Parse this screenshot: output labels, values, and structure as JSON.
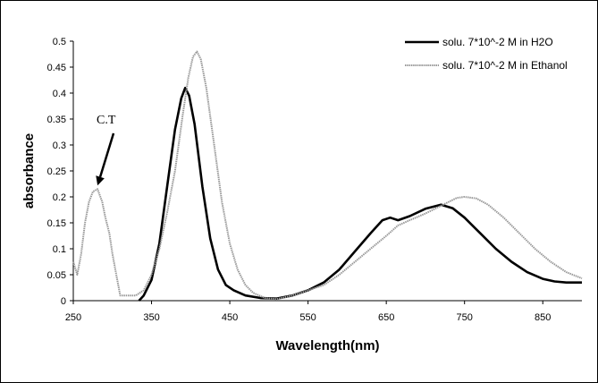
{
  "chart_data": {
    "type": "line",
    "title": "",
    "xlabel": "Wavelength(nm)",
    "ylabel": "absorbance",
    "xlim": [
      250,
      900
    ],
    "ylim": [
      0,
      0.5
    ],
    "x_ticks": [
      "250",
      "350",
      "450",
      "550",
      "650",
      "750",
      "850"
    ],
    "x_tick_values": [
      250,
      350,
      450,
      550,
      650,
      750,
      850
    ],
    "y_ticks": [
      "0",
      "0.05",
      "0.1",
      "0.15",
      "0.2",
      "0.25",
      "0.3",
      "0.35",
      "0.4",
      "0.45",
      "0.5"
    ],
    "y_tick_values": [
      0,
      0.05,
      0.1,
      0.15,
      0.2,
      0.25,
      0.3,
      0.35,
      0.4,
      0.45,
      0.5
    ],
    "grid": false,
    "legend": "top-right",
    "annotation": {
      "text": "C.T",
      "points_to": [
        281,
        0.215
      ]
    },
    "series": [
      {
        "name": "solu. 7*10^-2 M in H2O",
        "color": "#000000",
        "style": "solid-thick",
        "points": [
          [
            334,
            0
          ],
          [
            340,
            0.01
          ],
          [
            350,
            0.04
          ],
          [
            360,
            0.11
          ],
          [
            370,
            0.22
          ],
          [
            380,
            0.33
          ],
          [
            388,
            0.39
          ],
          [
            393,
            0.41
          ],
          [
            398,
            0.395
          ],
          [
            405,
            0.34
          ],
          [
            415,
            0.22
          ],
          [
            425,
            0.12
          ],
          [
            435,
            0.06
          ],
          [
            445,
            0.03
          ],
          [
            455,
            0.02
          ],
          [
            470,
            0.01
          ],
          [
            490,
            0.005
          ],
          [
            510,
            0.004
          ],
          [
            530,
            0.01
          ],
          [
            550,
            0.02
          ],
          [
            570,
            0.035
          ],
          [
            590,
            0.06
          ],
          [
            610,
            0.095
          ],
          [
            630,
            0.13
          ],
          [
            645,
            0.155
          ],
          [
            655,
            0.16
          ],
          [
            665,
            0.155
          ],
          [
            680,
            0.163
          ],
          [
            700,
            0.177
          ],
          [
            720,
            0.185
          ],
          [
            735,
            0.178
          ],
          [
            750,
            0.16
          ],
          [
            770,
            0.13
          ],
          [
            790,
            0.1
          ],
          [
            810,
            0.075
          ],
          [
            830,
            0.055
          ],
          [
            850,
            0.042
          ],
          [
            865,
            0.037
          ],
          [
            880,
            0.035
          ],
          [
            900,
            0.035
          ]
        ]
      },
      {
        "name": "solu. 7*10^-2 M in Ethanol",
        "color": "#999999",
        "style": "dotted",
        "points": [
          [
            250,
            0.075
          ],
          [
            255,
            0.05
          ],
          [
            260,
            0.09
          ],
          [
            265,
            0.15
          ],
          [
            270,
            0.19
          ],
          [
            275,
            0.21
          ],
          [
            281,
            0.215
          ],
          [
            287,
            0.19
          ],
          [
            291,
            0.16
          ],
          [
            296,
            0.13
          ],
          [
            300,
            0.09
          ],
          [
            305,
            0.05
          ],
          [
            310,
            0.01
          ],
          [
            320,
            0.01
          ],
          [
            330,
            0.01
          ],
          [
            340,
            0.02
          ],
          [
            350,
            0.05
          ],
          [
            360,
            0.1
          ],
          [
            370,
            0.17
          ],
          [
            380,
            0.25
          ],
          [
            390,
            0.36
          ],
          [
            397,
            0.43
          ],
          [
            403,
            0.47
          ],
          [
            408,
            0.48
          ],
          [
            413,
            0.465
          ],
          [
            420,
            0.41
          ],
          [
            430,
            0.3
          ],
          [
            440,
            0.19
          ],
          [
            450,
            0.11
          ],
          [
            460,
            0.06
          ],
          [
            470,
            0.03
          ],
          [
            480,
            0.015
          ],
          [
            495,
            0.005
          ],
          [
            510,
            0.003
          ],
          [
            530,
            0.01
          ],
          [
            550,
            0.02
          ],
          [
            570,
            0.03
          ],
          [
            590,
            0.05
          ],
          [
            610,
            0.075
          ],
          [
            630,
            0.1
          ],
          [
            650,
            0.125
          ],
          [
            665,
            0.145
          ],
          [
            680,
            0.155
          ],
          [
            700,
            0.168
          ],
          [
            720,
            0.183
          ],
          [
            740,
            0.198
          ],
          [
            750,
            0.2
          ],
          [
            765,
            0.197
          ],
          [
            780,
            0.185
          ],
          [
            800,
            0.16
          ],
          [
            820,
            0.13
          ],
          [
            840,
            0.1
          ],
          [
            860,
            0.075
          ],
          [
            880,
            0.055
          ],
          [
            900,
            0.043
          ]
        ]
      }
    ]
  }
}
